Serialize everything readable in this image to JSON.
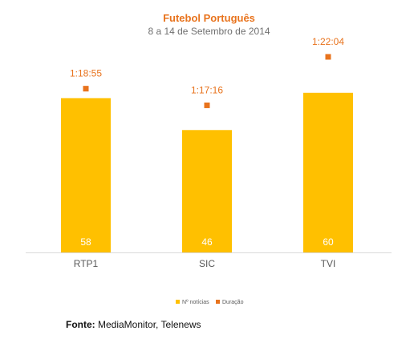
{
  "chart_data": {
    "type": "bar",
    "title": "Futebol Português",
    "subtitle": "8 a 14 de Setembro de 2014",
    "categories": [
      "RTP1",
      "SIC",
      "TVI"
    ],
    "series": [
      {
        "name": "Nº notícias",
        "type": "bar",
        "values": [
          58,
          46,
          60
        ],
        "labels": [
          "58",
          "46",
          "60"
        ],
        "color": "#ffc000"
      },
      {
        "name": "Duração",
        "type": "scatter",
        "values": [
          "1:18:55",
          "1:17:16",
          "1:22:04"
        ],
        "labels": [
          "1:18:55",
          "1:17:16",
          "1:22:04"
        ],
        "color": "#e8731d"
      }
    ],
    "legend": "bottom",
    "grid": false
  },
  "source": {
    "label": "Fonte:",
    "text": "MediaMonitor, Telenews"
  }
}
